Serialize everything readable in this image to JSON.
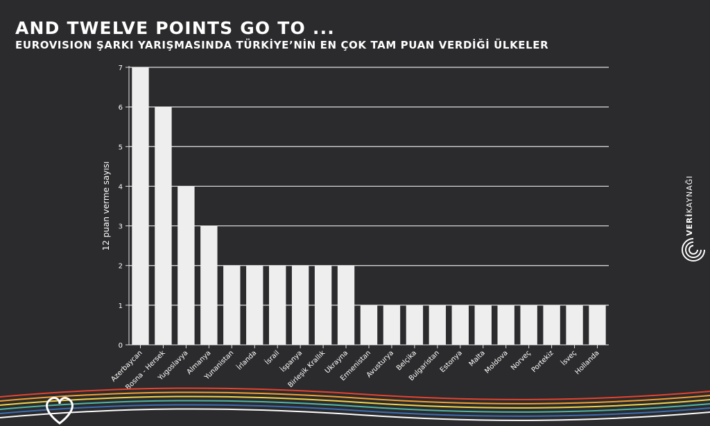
{
  "header": {
    "title": "AND TWELVE POINTS GO TO ...",
    "subtitle": "EUROVISION ŞARKI YARIŞMASINDA TÜRKİYE’NİN EN ÇOK TAM PUAN VERDİĞİ ÜLKELER"
  },
  "brand": {
    "name_bold": "VERİ",
    "name_light": "KAYNAĞI"
  },
  "colors": {
    "background": "#2b2a2c",
    "bar": "#eeeeee",
    "grid": "#e6e6e6",
    "text": "#ffffff",
    "waves": [
      "#e8432e",
      "#f3a233",
      "#f1d54a",
      "#4fb9a8",
      "#3b6fb6",
      "#ffffff"
    ]
  },
  "chart_data": {
    "type": "bar",
    "title": "",
    "xlabel": "",
    "ylabel": "12 puan verme sayısı",
    "ylim": [
      0,
      7
    ],
    "yticks": [
      0,
      1,
      2,
      3,
      4,
      5,
      6,
      7
    ],
    "grid": true,
    "categories": [
      "Azerbaycan",
      "Bosna - Hersek",
      "Yugoslavya",
      "Almanya",
      "Yunanistan",
      "İrlanda",
      "İsrail",
      "İspanya",
      "Birleşik Krallık",
      "Ukrayna",
      "Ermenistan",
      "Avusturya",
      "Belçika",
      "Bulgaristan",
      "Estonya",
      "Malta",
      "Moldova",
      "Norveç",
      "Portekiz",
      "İsveç",
      "Hollanda"
    ],
    "values": [
      7,
      6,
      4,
      3,
      2,
      2,
      2,
      2,
      2,
      2,
      1,
      1,
      1,
      1,
      1,
      1,
      1,
      1,
      1,
      1,
      1
    ]
  }
}
